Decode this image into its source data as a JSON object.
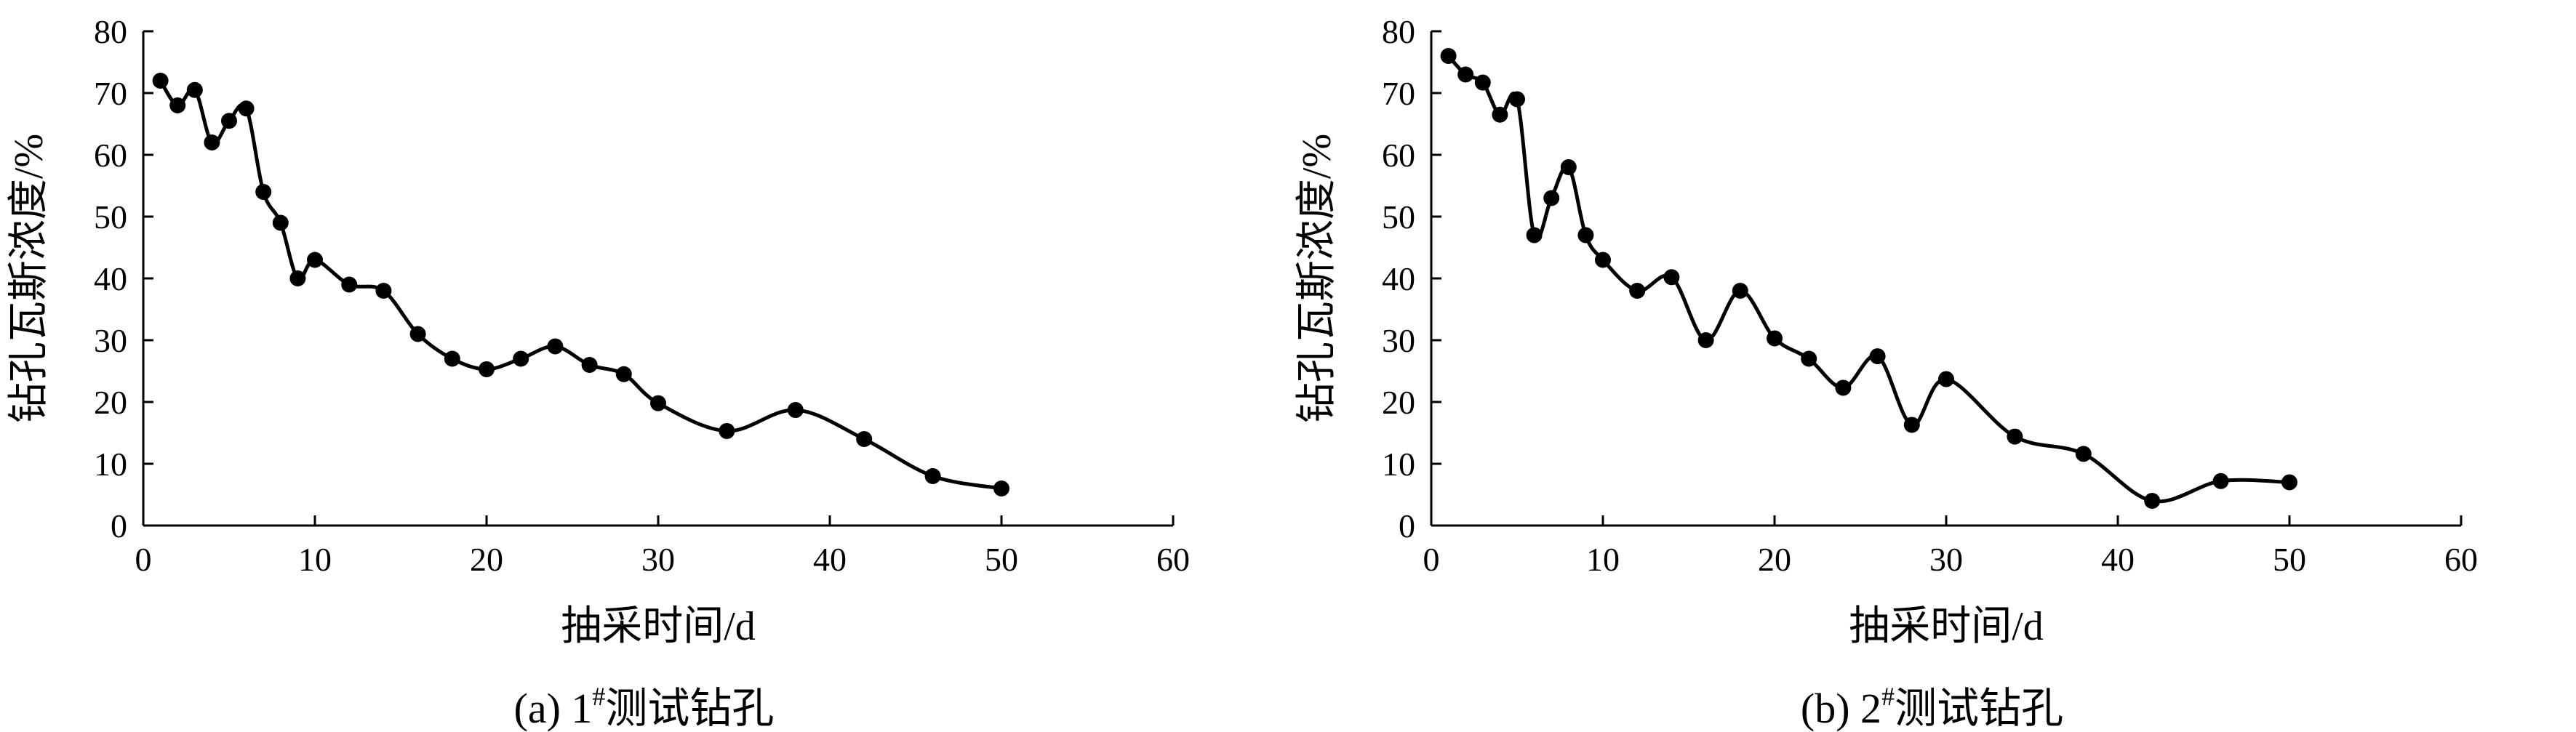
{
  "chart_data": [
    {
      "type": "line",
      "caption": {
        "prefix": "(a) 1",
        "sup": "#",
        "suffix": "测试钻孔"
      },
      "xlabel": "抽采时间/d",
      "ylabel": "钻孔瓦斯浓度/%",
      "xlim": [
        0,
        60
      ],
      "ylim": [
        0,
        80
      ],
      "xticks": [
        0,
        10,
        20,
        30,
        40,
        50,
        60
      ],
      "yticks": [
        0,
        10,
        20,
        30,
        40,
        50,
        60,
        70,
        80
      ],
      "grid": false,
      "series": [
        {
          "x": [
            1,
            2,
            3,
            4,
            5,
            6,
            7,
            8,
            9,
            10,
            12,
            14,
            16,
            18,
            20,
            22,
            24,
            26,
            28,
            30,
            34,
            38,
            42,
            46,
            50
          ],
          "y": [
            72,
            68,
            70.5,
            62,
            65.5,
            67.5,
            54,
            49,
            40,
            43,
            39,
            38,
            31,
            27,
            25.3,
            27,
            29,
            26,
            24.5,
            19.8,
            15.3,
            18.7,
            14,
            8,
            6
          ]
        }
      ]
    },
    {
      "type": "line",
      "caption": {
        "prefix": "(b) 2",
        "sup": "#",
        "suffix": "测试钻孔"
      },
      "xlabel": "抽采时间/d",
      "ylabel": "钻孔瓦斯浓度/%",
      "xlim": [
        0,
        60
      ],
      "ylim": [
        0,
        80
      ],
      "xticks": [
        0,
        10,
        20,
        30,
        40,
        50,
        60
      ],
      "yticks": [
        0,
        10,
        20,
        30,
        40,
        50,
        60,
        70,
        80
      ],
      "grid": false,
      "series": [
        {
          "x": [
            1,
            2,
            3,
            4,
            5,
            6,
            7,
            8,
            9,
            10,
            12,
            14,
            16,
            18,
            20,
            22,
            24,
            26,
            28,
            30,
            34,
            38,
            42,
            46,
            50
          ],
          "y": [
            76,
            73,
            71.7,
            66.5,
            69,
            47,
            53,
            58,
            47,
            43,
            38,
            40.2,
            30,
            38,
            30.3,
            27,
            22.3,
            27.4,
            16.3,
            23.7,
            14.4,
            11.6,
            4,
            7.2,
            7
          ]
        }
      ]
    }
  ]
}
